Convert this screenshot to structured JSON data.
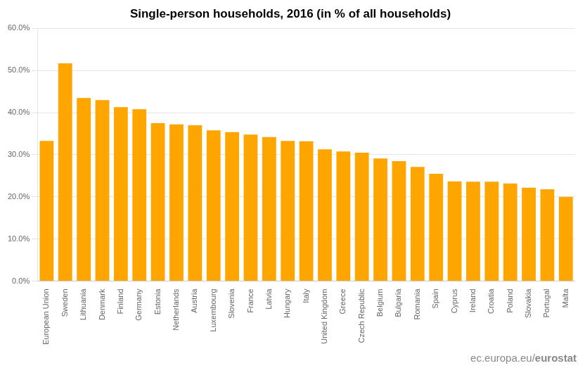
{
  "chart_data": {
    "type": "bar",
    "title": "Single-person households, 2016 (in % of all households)",
    "categories": [
      "European Union",
      "Sweden",
      "Lithuania",
      "Denmark",
      "Finland",
      "Germany",
      "Estonia",
      "Netherlands",
      "Austria",
      "Luxembourg",
      "Slovenia",
      "France",
      "Latvia",
      "Hungary",
      "Italy",
      "United Kingdom",
      "Greece",
      "Czech Republic",
      "Belgium",
      "Bulgaria",
      "Romania",
      "Spain",
      "Cyprus",
      "Ireland",
      "Croatia",
      "Poland",
      "Slovakia",
      "Portugal",
      "Malta"
    ],
    "values": [
      33.3,
      51.7,
      43.5,
      43.0,
      41.3,
      40.8,
      37.5,
      37.2,
      37.0,
      35.8,
      35.4,
      34.8,
      34.2,
      33.3,
      33.2,
      31.3,
      30.8,
      30.5,
      29.1,
      28.5,
      27.1,
      25.5,
      23.7,
      23.6,
      23.6,
      23.2,
      22.2,
      21.8,
      20.0
    ],
    "color": "#FFA500",
    "ylim": [
      0,
      60
    ],
    "yticks": [
      {
        "value": 0,
        "label": "0.0%"
      },
      {
        "value": 10,
        "label": "10.0%"
      },
      {
        "value": 20,
        "label": "20.0%"
      },
      {
        "value": 30,
        "label": "30.0%"
      },
      {
        "value": 40,
        "label": "40.0%"
      },
      {
        "value": 50,
        "label": "50.0%"
      },
      {
        "value": 60,
        "label": "60.0%"
      }
    ],
    "grid": true,
    "annotations": [
      "ec.europa.eu/",
      "eurostat"
    ]
  }
}
